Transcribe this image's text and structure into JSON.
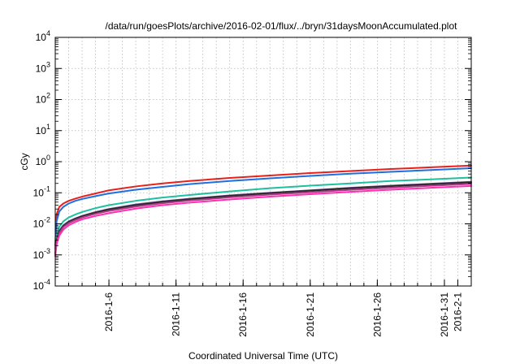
{
  "chart_data": {
    "type": "line",
    "title": "/data/run/goesPlots/archive/2016-02-01/flux/../bryn/31daysMoonAccumulated.plot",
    "xlabel": "Coordinated Universal Time (UTC)",
    "ylabel": "cGy",
    "y_scale": "log",
    "ylim": [
      0.0001,
      10000
    ],
    "xlim": [
      2.0,
      33.0
    ],
    "x_unit": "day of January 2016",
    "grid": true,
    "legend": "none",
    "x_ticks": [
      {
        "x": 6,
        "label": "2016-1-6"
      },
      {
        "x": 11,
        "label": "2016-1-11"
      },
      {
        "x": 16,
        "label": "2016-1-16"
      },
      {
        "x": 21,
        "label": "2016-1-21"
      },
      {
        "x": 26,
        "label": "2016-1-26"
      },
      {
        "x": 31,
        "label": "2016-1-31"
      },
      {
        "x": 32,
        "label": "2016-2-1"
      }
    ],
    "y_ticks": [
      {
        "value": 0.0001,
        "base": "10",
        "exp": "-4"
      },
      {
        "value": 0.001,
        "base": "10",
        "exp": "-3"
      },
      {
        "value": 0.01,
        "base": "10",
        "exp": "-2"
      },
      {
        "value": 0.1,
        "base": "10",
        "exp": "-1"
      },
      {
        "value": 1,
        "base": "10",
        "exp": "0"
      },
      {
        "value": 10,
        "base": "10",
        "exp": "1"
      },
      {
        "value": 100,
        "base": "10",
        "exp": "2"
      },
      {
        "value": 1000,
        "base": "10",
        "exp": "3"
      },
      {
        "value": 10000,
        "base": "10",
        "exp": "4"
      }
    ],
    "series": [
      {
        "color": "#e8201c",
        "x": [
          2.0,
          2.1,
          2.3,
          2.6,
          3.0,
          3.5,
          4.0,
          5.0,
          6.0,
          8.0,
          10.0,
          12.0,
          15.0,
          18.0,
          21.0,
          24.0,
          27.0,
          30.0,
          33.0
        ],
        "y": [
          0.002,
          0.02,
          0.035,
          0.045,
          0.055,
          0.065,
          0.075,
          0.095,
          0.12,
          0.16,
          0.2,
          0.24,
          0.3,
          0.36,
          0.43,
          0.5,
          0.58,
          0.66,
          0.75
        ]
      },
      {
        "color": "#1f6fe0",
        "x": [
          2.0,
          2.1,
          2.3,
          2.6,
          3.0,
          3.5,
          4.0,
          5.0,
          6.0,
          8.0,
          10.0,
          12.0,
          15.0,
          18.0,
          21.0,
          24.0,
          27.0,
          30.0,
          33.0
        ],
        "y": [
          0.0015,
          0.012,
          0.025,
          0.035,
          0.045,
          0.055,
          0.063,
          0.078,
          0.095,
          0.125,
          0.155,
          0.19,
          0.24,
          0.29,
          0.35,
          0.41,
          0.47,
          0.54,
          0.62
        ]
      },
      {
        "color": "#1fbfa0",
        "x": [
          2.0,
          2.1,
          2.3,
          2.6,
          3.0,
          3.5,
          4.0,
          5.0,
          6.0,
          8.0,
          10.0,
          12.0,
          15.0,
          18.0,
          21.0,
          24.0,
          27.0,
          30.0,
          33.0
        ],
        "y": [
          0.0012,
          0.004,
          0.008,
          0.012,
          0.016,
          0.02,
          0.024,
          0.032,
          0.04,
          0.055,
          0.07,
          0.085,
          0.11,
          0.14,
          0.17,
          0.2,
          0.24,
          0.27,
          0.31
        ]
      },
      {
        "color": "#6a4a8a",
        "x": [
          2.0,
          2.1,
          2.3,
          2.6,
          3.0,
          3.5,
          4.0,
          5.0,
          6.0,
          8.0,
          10.0,
          12.0,
          15.0,
          18.0,
          21.0,
          24.0,
          27.0,
          30.0,
          33.0
        ],
        "y": [
          0.001,
          0.003,
          0.006,
          0.009,
          0.012,
          0.015,
          0.018,
          0.024,
          0.03,
          0.042,
          0.053,
          0.064,
          0.082,
          0.1,
          0.12,
          0.145,
          0.17,
          0.195,
          0.225
        ]
      },
      {
        "color": "#2a2a2a",
        "x": [
          2.0,
          2.1,
          2.3,
          2.6,
          3.0,
          3.5,
          4.0,
          5.0,
          6.0,
          8.0,
          10.0,
          12.0,
          15.0,
          18.0,
          21.0,
          24.0,
          27.0,
          30.0,
          33.0
        ],
        "y": [
          0.001,
          0.0028,
          0.0055,
          0.0085,
          0.0115,
          0.0145,
          0.0175,
          0.023,
          0.029,
          0.04,
          0.051,
          0.062,
          0.079,
          0.097,
          0.116,
          0.139,
          0.163,
          0.188,
          0.215
        ]
      },
      {
        "color": "#b03a8a",
        "x": [
          2.0,
          2.1,
          2.3,
          2.6,
          3.0,
          3.5,
          4.0,
          5.0,
          6.0,
          8.0,
          10.0,
          12.0,
          15.0,
          18.0,
          21.0,
          24.0,
          27.0,
          30.0,
          33.0
        ],
        "y": [
          0.001,
          0.0025,
          0.005,
          0.0078,
          0.0105,
          0.0133,
          0.016,
          0.021,
          0.026,
          0.036,
          0.046,
          0.056,
          0.071,
          0.087,
          0.104,
          0.124,
          0.146,
          0.168,
          0.192
        ]
      },
      {
        "color": "#ff2fb0",
        "x": [
          2.0,
          2.1,
          2.3,
          2.6,
          3.0,
          3.5,
          4.0,
          5.0,
          6.0,
          8.0,
          10.0,
          12.0,
          15.0,
          18.0,
          21.0,
          24.0,
          27.0,
          30.0,
          33.0
        ],
        "y": [
          0.0009,
          0.0022,
          0.0042,
          0.0065,
          0.009,
          0.0115,
          0.014,
          0.018,
          0.022,
          0.031,
          0.04,
          0.048,
          0.061,
          0.075,
          0.09,
          0.107,
          0.125,
          0.145,
          0.165
        ]
      }
    ]
  }
}
